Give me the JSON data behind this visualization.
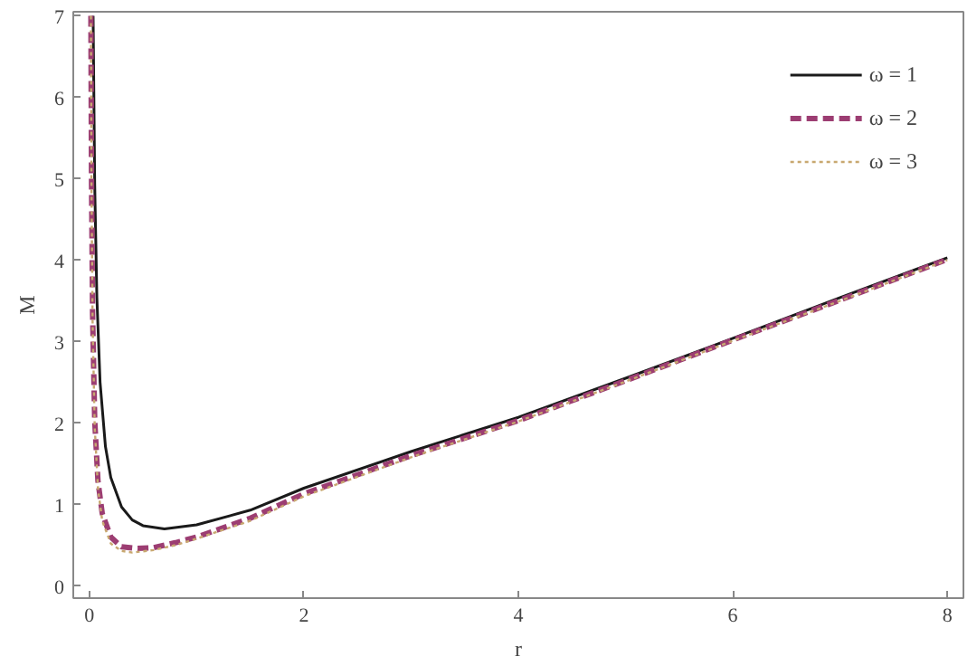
{
  "chart_data": {
    "type": "line",
    "xlabel": "r",
    "ylabel": "M",
    "xlim": [
      -0.15,
      8.15
    ],
    "ylim": [
      -0.15,
      7.05
    ],
    "xticks": [
      0,
      2,
      4,
      6,
      8
    ],
    "yticks": [
      0,
      1,
      2,
      3,
      4,
      5,
      6,
      7
    ],
    "grid": false,
    "legend": "top right",
    "series": [
      {
        "name": "ω = 1",
        "color": "#1a1a1a",
        "line_style": "solid",
        "x": [
          0.035,
          0.05,
          0.07,
          0.1,
          0.15,
          0.2,
          0.3,
          0.4,
          0.5,
          0.7,
          1,
          1.5,
          2,
          3,
          4,
          5,
          6,
          7,
          8
        ],
        "values": [
          7.0,
          4.92,
          3.54,
          2.5,
          1.71,
          1.33,
          0.97,
          0.81,
          0.74,
          0.7,
          0.75,
          0.93,
          1.2,
          1.65,
          2.07,
          2.55,
          3.04,
          3.54,
          4.03
        ]
      },
      {
        "name": "ω = 2",
        "color": "#9c3d72",
        "line_style": "dashed",
        "x": [
          0.0145,
          0.02,
          0.03,
          0.05,
          0.08,
          0.12,
          0.2,
          0.3,
          0.45,
          0.6,
          0.8,
          1,
          1.5,
          2,
          3,
          4,
          5,
          6,
          7,
          8
        ],
        "values": [
          7.0,
          5.0,
          3.35,
          2.03,
          1.29,
          0.89,
          0.6,
          0.48,
          0.46,
          0.47,
          0.53,
          0.6,
          0.83,
          1.13,
          1.6,
          2.03,
          2.52,
          3.02,
          3.51,
          4.01
        ]
      },
      {
        "name": "ω = 3",
        "color": "#c8a870",
        "line_style": "dotted",
        "x": [
          0.0145,
          0.02,
          0.03,
          0.05,
          0.08,
          0.12,
          0.2,
          0.3,
          0.4,
          0.6,
          0.8,
          1,
          1.5,
          2,
          3,
          4,
          5,
          6,
          7,
          8
        ],
        "values": [
          7.0,
          4.9,
          3.25,
          1.95,
          1.2,
          0.8,
          0.52,
          0.43,
          0.41,
          0.44,
          0.5,
          0.58,
          0.8,
          1.1,
          1.58,
          2.02,
          2.51,
          3.01,
          3.5,
          4.0
        ]
      }
    ]
  }
}
